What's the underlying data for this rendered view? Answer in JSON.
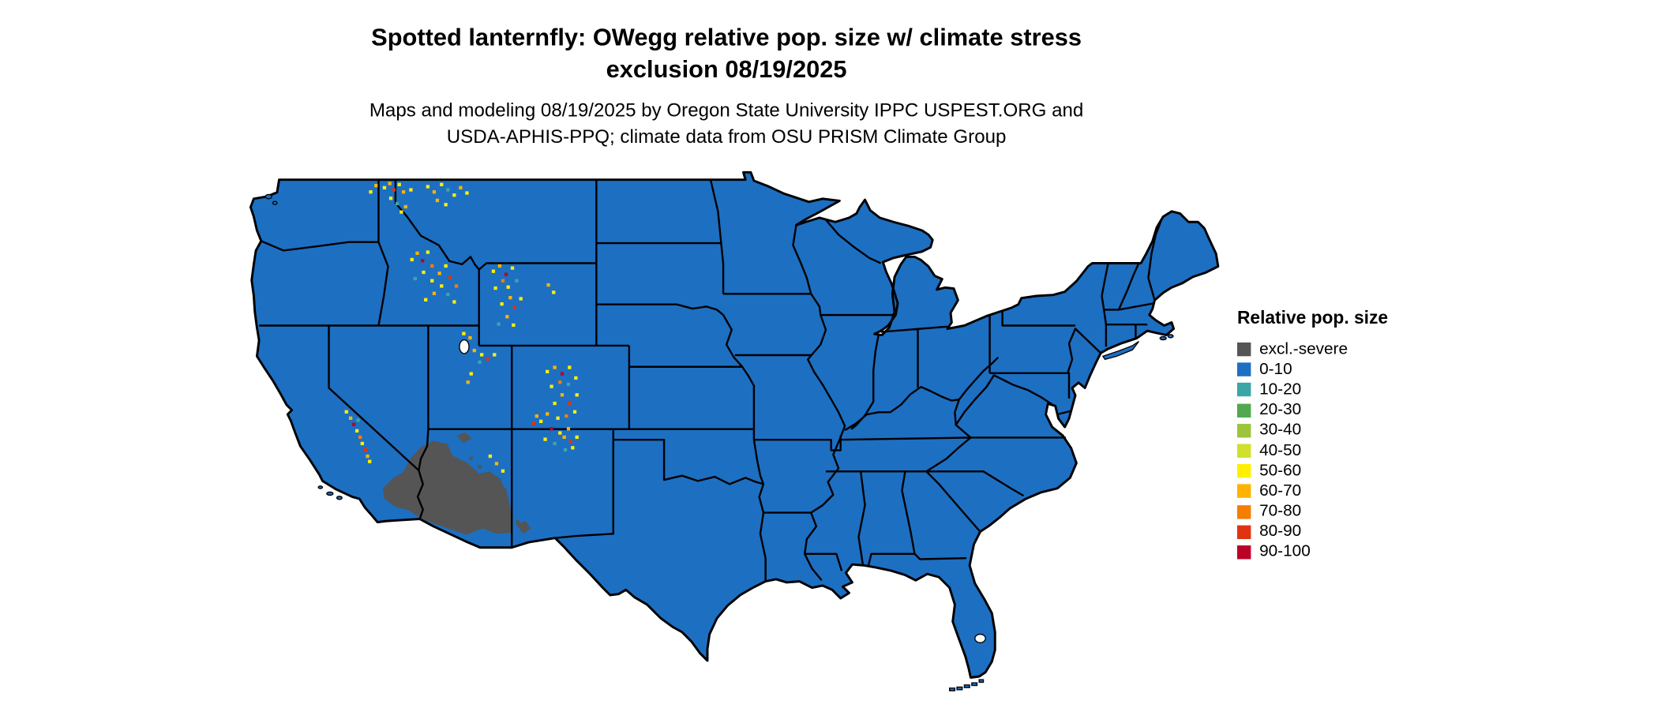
{
  "title": {
    "line1": "Spotted lanternfly: OWegg relative pop. size w/ climate stress",
    "line2": "exclusion 08/19/2025"
  },
  "subtitle": {
    "line1": "Maps and modeling 08/19/2025 by Oregon State University IPPC USPEST.ORG and",
    "line2": "USDA-APHIS-PPQ; climate data from OSU PRISM Climate Group"
  },
  "legend": {
    "title": "Relative pop. size",
    "items": [
      {
        "label": "excl.-severe",
        "color": "#555555"
      },
      {
        "label": "0-10",
        "color": "#1D6FC2"
      },
      {
        "label": "10-20",
        "color": "#3BA6A6"
      },
      {
        "label": "20-30",
        "color": "#52A84E"
      },
      {
        "label": "30-40",
        "color": "#9CC53A"
      },
      {
        "label": "40-50",
        "color": "#CFE02E"
      },
      {
        "label": "50-60",
        "color": "#FFF000"
      },
      {
        "label": "60-70",
        "color": "#FFB300"
      },
      {
        "label": "70-80",
        "color": "#F57E00"
      },
      {
        "label": "80-90",
        "color": "#E03410"
      },
      {
        "label": "90-100",
        "color": "#BD0026"
      }
    ]
  },
  "map": {
    "land_color": "#1D6FC2",
    "exclusion_color": "#555555",
    "border_color": "#000000",
    "speckle_colors": {
      "y": "#FFF000",
      "o": "#FFB300",
      "d": "#F57E00",
      "r": "#E03410",
      "R": "#BD0026",
      "t": "#3BA6A6",
      "g": "#555555"
    },
    "speckles": [
      [
        362,
        176,
        "y"
      ],
      [
        367,
        172,
        "o"
      ],
      [
        371,
        178,
        "r"
      ],
      [
        376,
        173,
        "y"
      ],
      [
        380,
        180,
        "o"
      ],
      [
        368,
        186,
        "y"
      ],
      [
        374,
        191,
        "t"
      ],
      [
        382,
        194,
        "o"
      ],
      [
        378,
        199,
        "y"
      ],
      [
        387,
        178,
        "y"
      ],
      [
        349,
        180,
        "y"
      ],
      [
        354,
        174,
        "o"
      ],
      [
        403,
        175,
        "y"
      ],
      [
        409,
        180,
        "o"
      ],
      [
        416,
        173,
        "y"
      ],
      [
        422,
        178,
        "t"
      ],
      [
        428,
        183,
        "y"
      ],
      [
        434,
        176,
        "o"
      ],
      [
        440,
        181,
        "y"
      ],
      [
        412,
        188,
        "o"
      ],
      [
        420,
        192,
        "y"
      ],
      [
        388,
        244,
        "y"
      ],
      [
        393,
        238,
        "o"
      ],
      [
        398,
        245,
        "R"
      ],
      [
        403,
        237,
        "y"
      ],
      [
        407,
        250,
        "d"
      ],
      [
        399,
        256,
        "y"
      ],
      [
        391,
        262,
        "t"
      ],
      [
        407,
        264,
        "y"
      ],
      [
        414,
        257,
        "o"
      ],
      [
        420,
        250,
        "y"
      ],
      [
        424,
        261,
        "r"
      ],
      [
        416,
        269,
        "y"
      ],
      [
        409,
        276,
        "o"
      ],
      [
        401,
        282,
        "y"
      ],
      [
        422,
        277,
        "t"
      ],
      [
        430,
        269,
        "d"
      ],
      [
        428,
        284,
        "y"
      ],
      [
        465,
        255,
        "y"
      ],
      [
        471,
        250,
        "o"
      ],
      [
        477,
        258,
        "R"
      ],
      [
        483,
        252,
        "y"
      ],
      [
        474,
        264,
        "d"
      ],
      [
        467,
        271,
        "y"
      ],
      [
        479,
        270,
        "y"
      ],
      [
        487,
        264,
        "t"
      ],
      [
        481,
        280,
        "o"
      ],
      [
        473,
        286,
        "y"
      ],
      [
        485,
        289,
        "r"
      ],
      [
        491,
        281,
        "y"
      ],
      [
        478,
        298,
        "o"
      ],
      [
        484,
        306,
        "y"
      ],
      [
        470,
        305,
        "t"
      ],
      [
        517,
        268,
        "o"
      ],
      [
        522,
        275,
        "y"
      ],
      [
        447,
        330,
        "o"
      ],
      [
        454,
        334,
        "y"
      ],
      [
        460,
        338,
        "r"
      ],
      [
        466,
        334,
        "y"
      ],
      [
        452,
        341,
        "t"
      ],
      [
        444,
        352,
        "y"
      ],
      [
        441,
        360,
        "o"
      ],
      [
        437,
        314,
        "y"
      ],
      [
        443,
        318,
        "o"
      ],
      [
        516,
        350,
        "y"
      ],
      [
        523,
        346,
        "o"
      ],
      [
        530,
        352,
        "R"
      ],
      [
        537,
        346,
        "y"
      ],
      [
        528,
        360,
        "d"
      ],
      [
        520,
        364,
        "y"
      ],
      [
        536,
        362,
        "t"
      ],
      [
        543,
        356,
        "y"
      ],
      [
        530,
        372,
        "o"
      ],
      [
        523,
        380,
        "y"
      ],
      [
        537,
        380,
        "r"
      ],
      [
        544,
        372,
        "y"
      ],
      [
        516,
        390,
        "o"
      ],
      [
        526,
        394,
        "y"
      ],
      [
        534,
        392,
        "d"
      ],
      [
        542,
        388,
        "y"
      ],
      [
        520,
        404,
        "R"
      ],
      [
        528,
        408,
        "y"
      ],
      [
        536,
        404,
        "o"
      ],
      [
        514,
        414,
        "y"
      ],
      [
        523,
        418,
        "t"
      ],
      [
        506,
        392,
        "o"
      ],
      [
        510,
        397,
        "y"
      ],
      [
        503,
        399,
        "r"
      ],
      [
        532,
        412,
        "o"
      ],
      [
        538,
        416,
        "r"
      ],
      [
        544,
        412,
        "y"
      ],
      [
        540,
        422,
        "y"
      ],
      [
        533,
        424,
        "t"
      ],
      [
        326,
        388,
        "y"
      ],
      [
        330,
        394,
        "o"
      ],
      [
        333,
        400,
        "R"
      ],
      [
        336,
        406,
        "y"
      ],
      [
        339,
        412,
        "d"
      ],
      [
        341,
        418,
        "y"
      ],
      [
        344,
        424,
        "r"
      ],
      [
        346,
        430,
        "o"
      ],
      [
        348,
        435,
        "y"
      ],
      [
        337,
        396,
        "t"
      ],
      [
        462,
        430,
        "y"
      ],
      [
        468,
        437,
        "o"
      ],
      [
        474,
        444,
        "y"
      ],
      [
        470,
        455,
        "g"
      ],
      [
        476,
        462,
        "g"
      ],
      [
        452,
        440,
        "g"
      ],
      [
        444,
        432,
        "g"
      ],
      [
        488,
        492,
        "g"
      ],
      [
        493,
        500,
        "g"
      ]
    ]
  }
}
